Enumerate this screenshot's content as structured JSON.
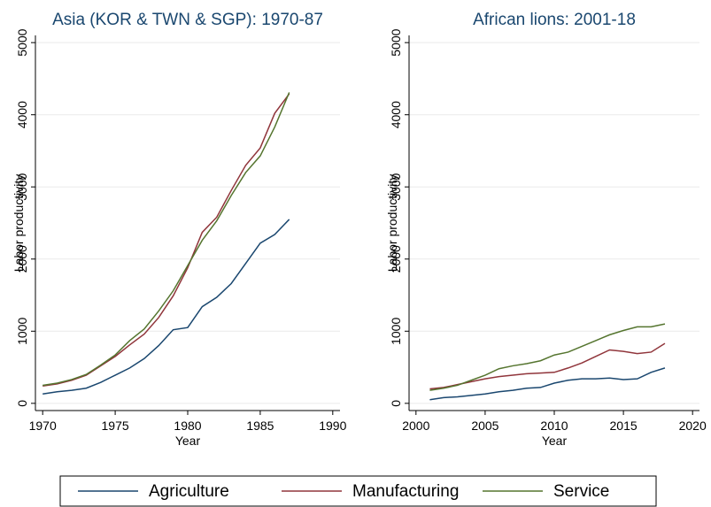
{
  "chart_data": [
    {
      "type": "line",
      "title": "Asia (KOR & TWN & SGP): 1970-87",
      "x_label": "Year",
      "y_label": "Labor productivity",
      "x": [
        1970,
        1971,
        1972,
        1973,
        1974,
        1975,
        1976,
        1977,
        1978,
        1979,
        1980,
        1981,
        1982,
        1983,
        1984,
        1985,
        1986,
        1987
      ],
      "series": [
        {
          "name": "Agriculture",
          "color": "#1a476f",
          "values": [
            130,
            160,
            180,
            210,
            290,
            390,
            490,
            620,
            800,
            1020,
            1050,
            1340,
            1470,
            1660,
            1940,
            2220,
            2340,
            2550
          ]
        },
        {
          "name": "Manufacturing",
          "color": "#90353b",
          "values": [
            240,
            270,
            320,
            390,
            520,
            650,
            810,
            960,
            1190,
            1490,
            1880,
            2370,
            2580,
            2950,
            3300,
            3540,
            4020,
            4290
          ]
        },
        {
          "name": "Service",
          "color": "#55752f",
          "values": [
            250,
            280,
            330,
            400,
            530,
            670,
            870,
            1030,
            1280,
            1560,
            1910,
            2260,
            2530,
            2880,
            3200,
            3430,
            3830,
            4310
          ]
        }
      ],
      "xlim": [
        1969.5,
        1990.5
      ],
      "xticks": [
        1970,
        1975,
        1980,
        1985,
        1990
      ],
      "ylim": [
        -100,
        5100
      ],
      "yticks": [
        0,
        1000,
        2000,
        3000,
        4000,
        5000
      ],
      "grid": true
    },
    {
      "type": "line",
      "title": "African lions: 2001-18",
      "x_label": "Year",
      "y_label": "Labor productivity",
      "x": [
        2001,
        2002,
        2003,
        2004,
        2005,
        2006,
        2007,
        2008,
        2009,
        2010,
        2011,
        2012,
        2013,
        2014,
        2015,
        2016,
        2017,
        2018
      ],
      "series": [
        {
          "color": "#1a476f",
          "values": [
            50,
            80,
            90,
            110,
            130,
            160,
            180,
            210,
            220,
            280,
            320,
            340,
            340,
            350,
            330,
            340,
            430,
            490
          ]
        },
        {
          "color": "#90353b",
          "values": [
            200,
            220,
            260,
            300,
            340,
            370,
            390,
            410,
            420,
            430,
            490,
            560,
            650,
            740,
            720,
            690,
            710,
            830
          ]
        },
        {
          "color": "#55752f",
          "values": [
            180,
            210,
            250,
            320,
            390,
            480,
            520,
            550,
            590,
            670,
            710,
            790,
            870,
            950,
            1010,
            1060,
            1060,
            1100
          ]
        }
      ],
      "xlim": [
        1999.5,
        2020.5
      ],
      "xticks": [
        2000,
        2005,
        2010,
        2015,
        2020
      ],
      "ylim": [
        -100,
        5100
      ],
      "yticks": [
        0,
        1000,
        2000,
        3000,
        4000,
        5000
      ],
      "grid": true
    }
  ]
}
